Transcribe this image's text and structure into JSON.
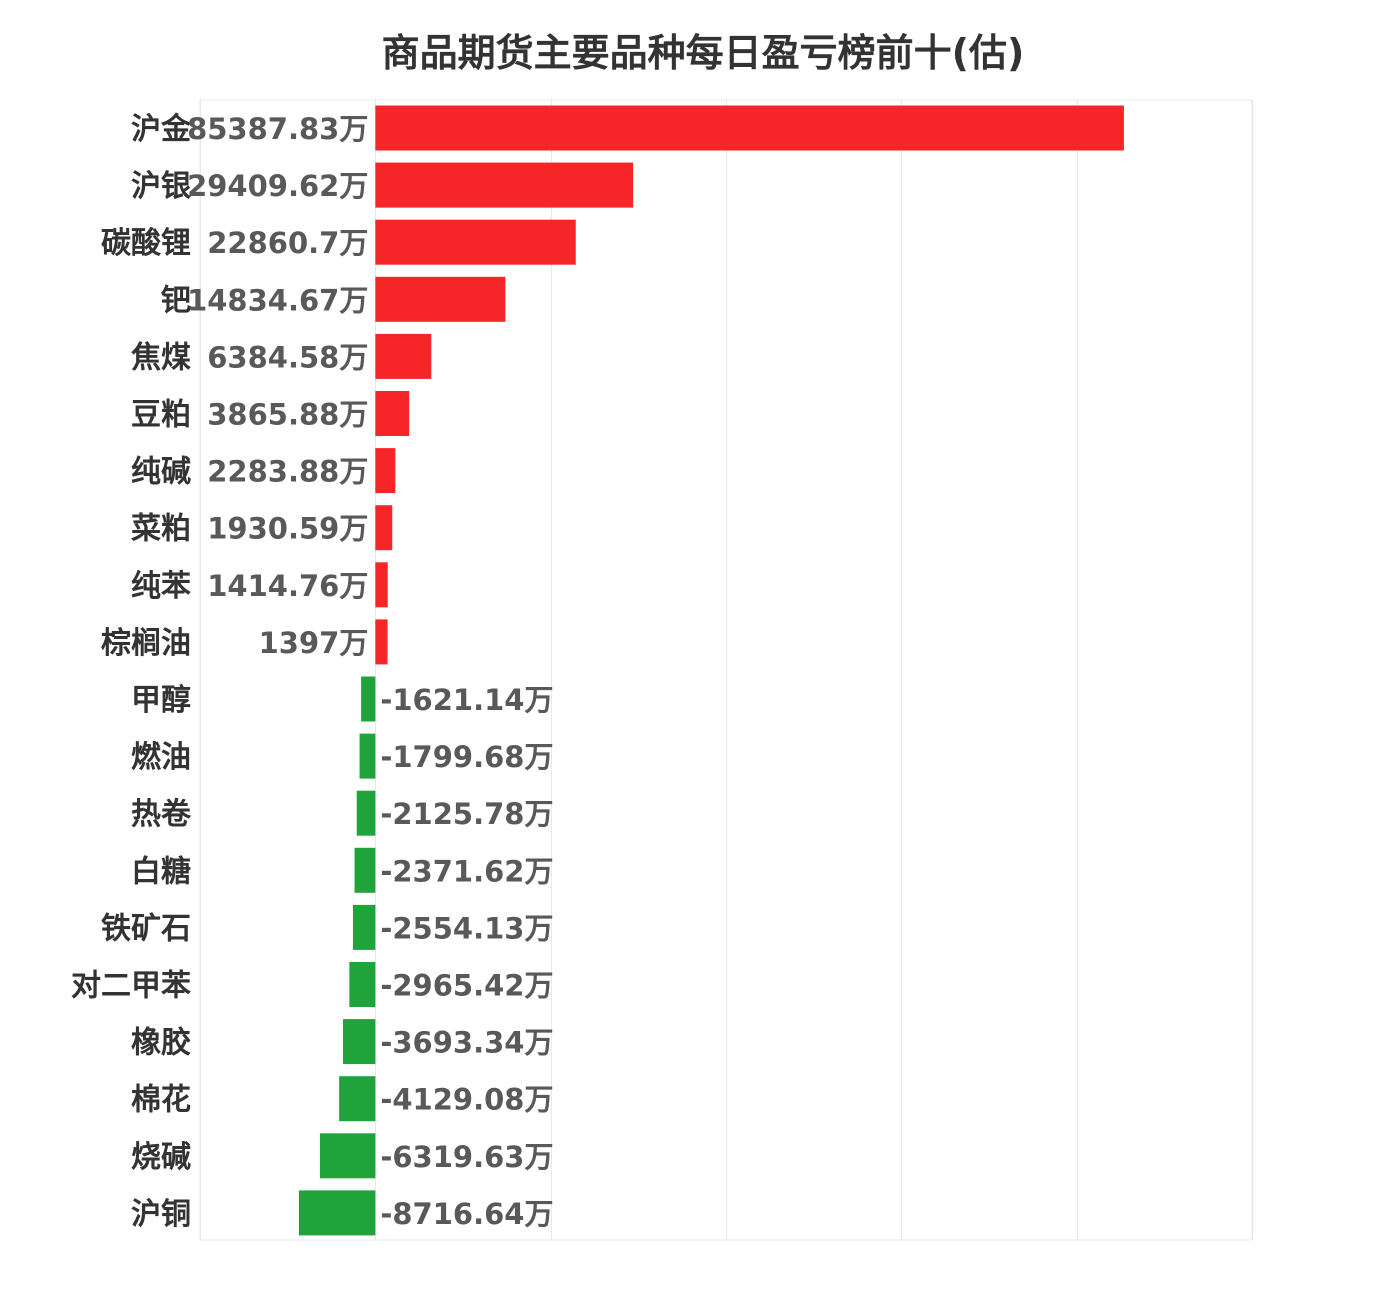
{
  "chart_data": {
    "type": "bar",
    "orientation": "horizontal",
    "title": "商品期货主要品种每日盈亏榜前十(估)",
    "unit": "万",
    "categories": [
      "沪金",
      "沪银",
      "碳酸锂",
      "钯",
      "焦煤",
      "豆粕",
      "纯碱",
      "菜粕",
      "纯苯",
      "棕榈油",
      "甲醇",
      "燃油",
      "热卷",
      "白糖",
      "铁矿石",
      "对二甲苯",
      "橡胶",
      "棉花",
      "烧碱",
      "沪铜"
    ],
    "values": [
      85387.83,
      29409.62,
      22860.7,
      14834.67,
      6384.58,
      3865.88,
      2283.88,
      1930.59,
      1414.76,
      1397,
      -1621.14,
      -1799.68,
      -2125.78,
      -2371.62,
      -2554.13,
      -2965.42,
      -3693.34,
      -4129.08,
      -6319.63,
      -8716.64
    ],
    "value_labels": [
      "85387.83万",
      "29409.62万",
      "22860.7万",
      "14834.67万",
      "6384.58万",
      "3865.88万",
      "2283.88万",
      "1930.59万",
      "1414.76万",
      "1397万",
      "-1621.14万",
      "-1799.68万",
      "-2125.78万",
      "-2371.62万",
      "-2554.13万",
      "-2965.42万",
      "-3693.34万",
      "-4129.08万",
      "-6319.63万",
      "-8716.64万"
    ],
    "xlim": [
      -20000,
      100000
    ],
    "grid": true,
    "legend": "none",
    "colors": {
      "positive": "#f52528",
      "negative": "#21a33b",
      "grid": "#e8e8e8"
    }
  }
}
